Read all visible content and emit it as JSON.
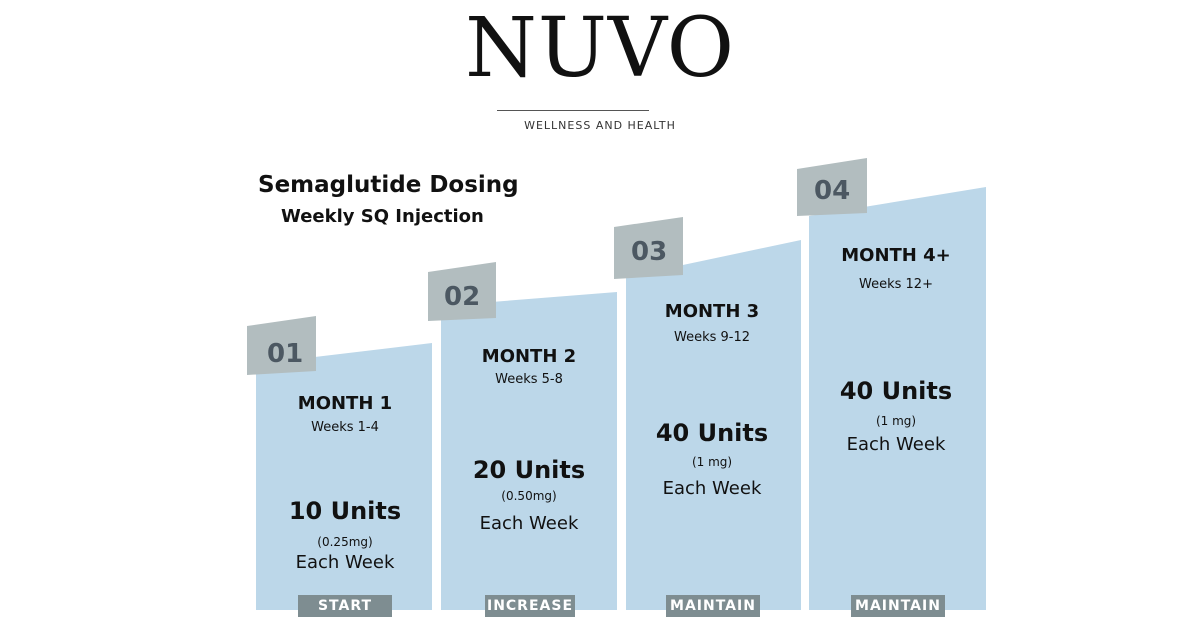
{
  "brand": {
    "name": "NUVO",
    "tagline": "WELLNESS AND HEALTH"
  },
  "title": "Semaglutide Dosing",
  "subtitle": "Weekly SQ Injection",
  "colors": {
    "panel": "#bcd7e9",
    "badge": "#b2bdbf",
    "badge_text": "#4c5862",
    "stage_bar": "#7e8d91"
  },
  "steps": [
    {
      "number": "01",
      "month": "MONTH 1",
      "weeks": "Weeks 1-4",
      "units": "10 Units",
      "mg": "(0.25mg)",
      "frequency": "Each Week",
      "stage": "START"
    },
    {
      "number": "02",
      "month": "MONTH 2",
      "weeks": "Weeks 5-8",
      "units": "20 Units",
      "mg": "(0.50mg)",
      "frequency": "Each Week",
      "stage": "INCREASE"
    },
    {
      "number": "03",
      "month": "MONTH 3",
      "weeks": "Weeks 9-12",
      "units": "40 Units",
      "mg": "(1 mg)",
      "frequency": "Each Week",
      "stage": "MAINTAIN"
    },
    {
      "number": "04",
      "month": "MONTH 4+",
      "weeks": "Weeks 12+",
      "units": "40 Units",
      "mg": "(1 mg)",
      "frequency": "Each Week",
      "stage": "MAINTAIN"
    }
  ]
}
